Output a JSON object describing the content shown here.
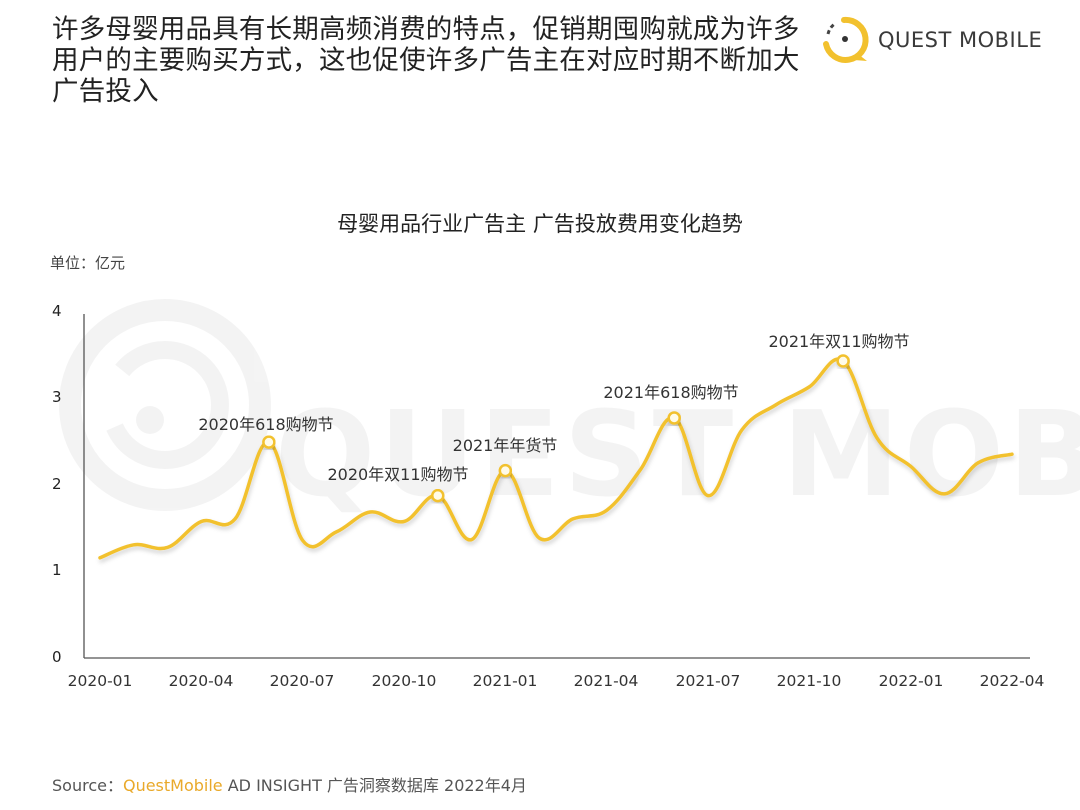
{
  "headline": {
    "lines": [
      "许多母婴用品具有长期高频消费的特点，促销期囤购就成为许多",
      "用户的主要购买方式，这也促使许多广告主在对应时期不断加大",
      "广告投入"
    ]
  },
  "logo": {
    "text": "QUEST MOBILE",
    "icon": "quest-mobile-logo-icon",
    "color": "#f2c12e"
  },
  "watermark": "QUEST MOBILE",
  "chart": {
    "title": "母婴用品行业广告主 广告投放费用变化趋势",
    "unit": "单位：亿元",
    "y_ticks": [
      "4",
      "3",
      "2",
      "1",
      "0"
    ],
    "x_ticks": [
      "2020-01",
      "2020-04",
      "2020-07",
      "2020-10",
      "2021-01",
      "2021-04",
      "2021-07",
      "2021-10",
      "2022-01",
      "2022-04"
    ],
    "annotations": [
      {
        "label": "2020年618购物节",
        "month": "2020-06"
      },
      {
        "label": "2020年双11购物节",
        "month": "2020-11"
      },
      {
        "label": "2021年年货节",
        "month": "2021-01"
      },
      {
        "label": "2021年618购物节",
        "month": "2021-06"
      },
      {
        "label": "2021年双11购物节",
        "month": "2021-11"
      }
    ],
    "line_color": "#f2c12e"
  },
  "source": {
    "prefix": "Source：",
    "brand": "QuestMobile",
    "rest": " AD INSIGHT 广告洞察数据库 2022年4月"
  },
  "chart_data": {
    "type": "line",
    "title": "母婴用品行业广告主 广告投放费用变化趋势",
    "xlabel": "",
    "ylabel": "单位：亿元",
    "ylim": [
      0,
      4
    ],
    "y_ticks": [
      0,
      1,
      2,
      3,
      4
    ],
    "grid": false,
    "legend": "none",
    "x": [
      "2020-01",
      "2020-02",
      "2020-03",
      "2020-04",
      "2020-05",
      "2020-06",
      "2020-07",
      "2020-08",
      "2020-09",
      "2020-10",
      "2020-11",
      "2020-12",
      "2021-01",
      "2021-02",
      "2021-03",
      "2021-04",
      "2021-05",
      "2021-06",
      "2021-07",
      "2021-08",
      "2021-09",
      "2021-10",
      "2021-11",
      "2021-12",
      "2022-01",
      "2022-02",
      "2022-03",
      "2022-04"
    ],
    "series": [
      {
        "name": "母婴用品行业广告主广告投放费用（亿元）",
        "values": [
          1.15,
          1.3,
          1.27,
          1.57,
          1.6,
          2.49,
          1.35,
          1.45,
          1.68,
          1.57,
          1.87,
          1.36,
          2.16,
          1.38,
          1.6,
          1.7,
          2.17,
          2.77,
          1.87,
          2.63,
          2.92,
          3.13,
          3.43,
          2.54,
          2.21,
          1.89,
          2.25,
          2.35
        ]
      }
    ],
    "annotations": [
      {
        "x": "2020-06",
        "y": 2.49,
        "text": "2020年618购物节"
      },
      {
        "x": "2020-11",
        "y": 1.87,
        "text": "2020年双11购物节"
      },
      {
        "x": "2021-01",
        "y": 2.16,
        "text": "2021年年货节"
      },
      {
        "x": "2021-06",
        "y": 2.77,
        "text": "2021年618购物节"
      },
      {
        "x": "2021-11",
        "y": 3.43,
        "text": "2021年双11购物节"
      }
    ]
  }
}
